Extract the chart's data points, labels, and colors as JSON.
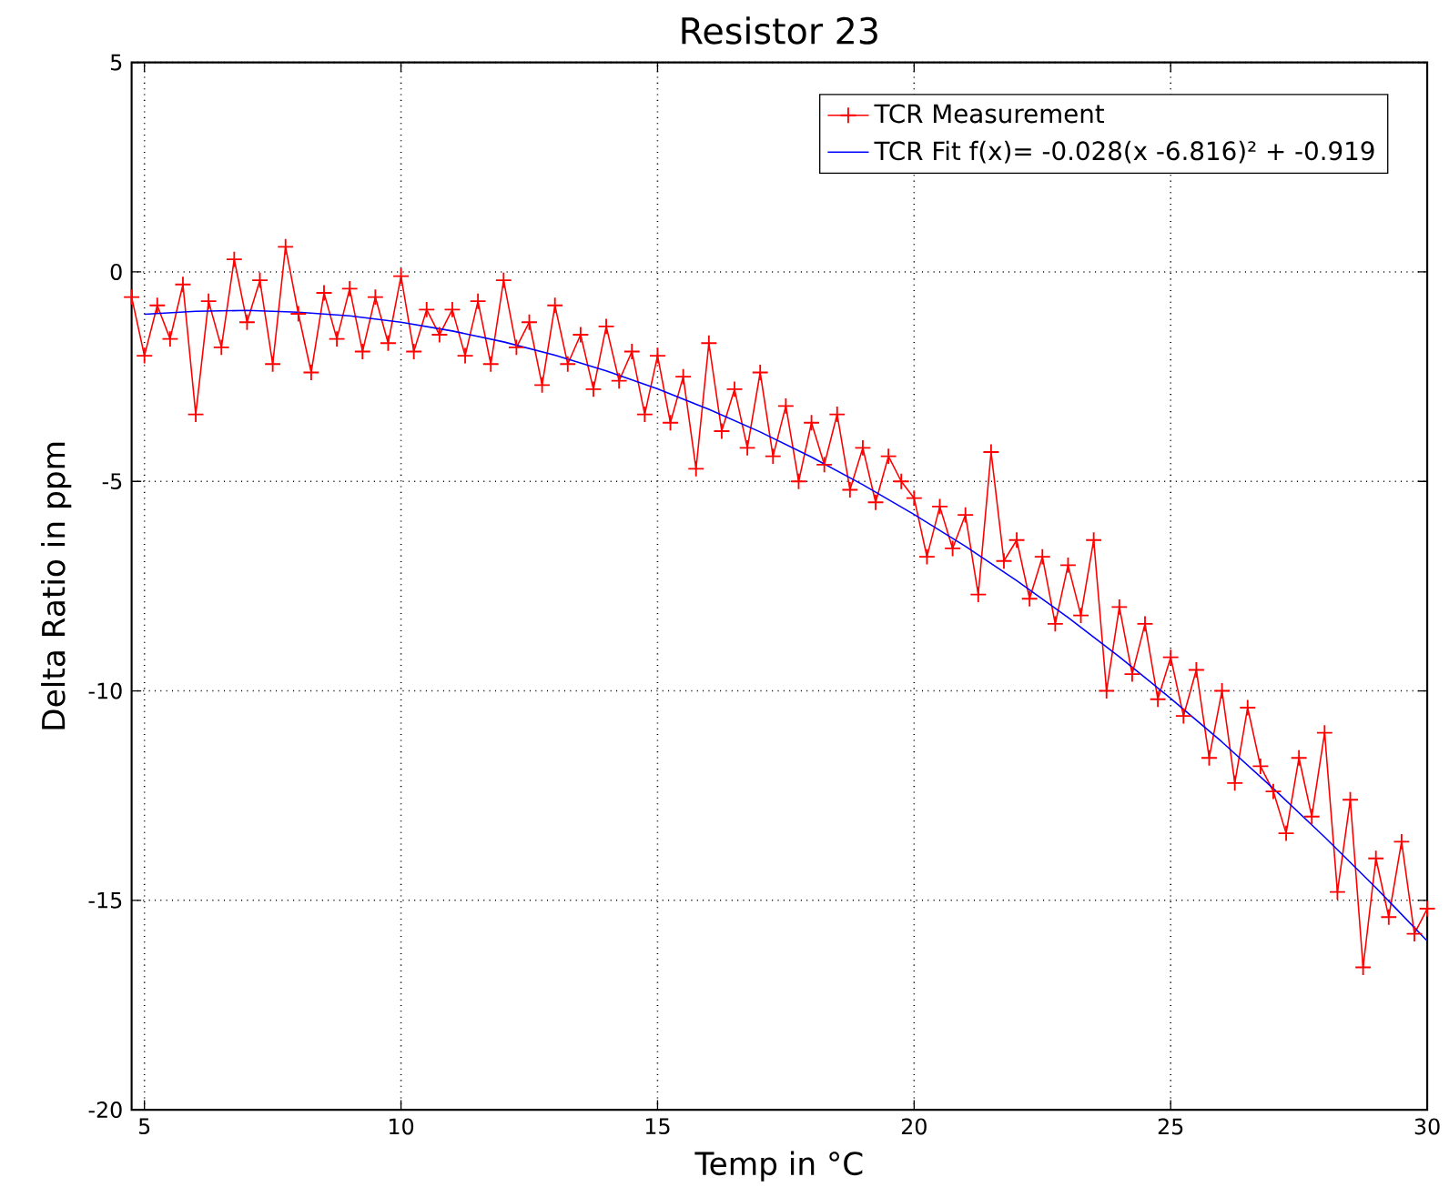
{
  "chart_data": {
    "type": "line",
    "title": "Resistor 23",
    "xlabel": "Temp in °C",
    "ylabel": "Delta Ratio in ppm",
    "xlim": [
      4.75,
      30
    ],
    "xticks": [
      5,
      10,
      15,
      20,
      25,
      30
    ],
    "ylim": [
      -20,
      5
    ],
    "yticks": [
      -20,
      -15,
      -10,
      -5,
      0,
      5
    ],
    "grid": true,
    "legend": "top right",
    "line_style": "solid",
    "series": [
      {
        "name": "TCR Measurement",
        "color": "#ff0000",
        "marker": "cross",
        "x": [
          4.75,
          5,
          5.25,
          5.5,
          5.75,
          6,
          6.25,
          6.5,
          6.75,
          7,
          7.25,
          7.5,
          7.75,
          8,
          8.25,
          8.5,
          8.75,
          9,
          9.25,
          9.5,
          9.75,
          10,
          10.25,
          10.5,
          10.75,
          11,
          11.25,
          11.5,
          11.75,
          12,
          12.25,
          12.5,
          12.75,
          13,
          13.25,
          13.5,
          13.75,
          14,
          14.25,
          14.5,
          14.75,
          15,
          15.25,
          15.5,
          15.75,
          16,
          16.25,
          16.5,
          16.75,
          17,
          17.25,
          17.5,
          17.75,
          18,
          18.25,
          18.5,
          18.75,
          19,
          19.25,
          19.5,
          19.75,
          20,
          20.25,
          20.5,
          20.75,
          21,
          21.25,
          21.5,
          21.75,
          22,
          22.25,
          22.5,
          22.75,
          23,
          23.25,
          23.5,
          23.75,
          24,
          24.25,
          24.5,
          24.75,
          25,
          25.25,
          25.5,
          25.75,
          26,
          26.25,
          26.5,
          26.75,
          27,
          27.25,
          27.5,
          27.75,
          28,
          28.25,
          28.5,
          28.75,
          29,
          29.25,
          29.5,
          29.75,
          30
        ],
        "values": [
          -0.6,
          -2.0,
          -0.8,
          -1.6,
          -0.3,
          -3.4,
          -0.7,
          -1.8,
          0.3,
          -1.2,
          -0.2,
          -2.2,
          0.6,
          -1.0,
          -2.4,
          -0.5,
          -1.6,
          -0.4,
          -1.9,
          -0.6,
          -1.7,
          -0.1,
          -1.9,
          -0.9,
          -1.5,
          -0.9,
          -2.0,
          -0.7,
          -2.2,
          -0.2,
          -1.8,
          -1.2,
          -2.7,
          -0.8,
          -2.2,
          -1.5,
          -2.8,
          -1.3,
          -2.6,
          -1.9,
          -3.4,
          -2.0,
          -3.6,
          -2.5,
          -4.7,
          -1.7,
          -3.8,
          -2.8,
          -4.2,
          -2.4,
          -4.4,
          -3.2,
          -5.0,
          -3.6,
          -4.6,
          -3.4,
          -5.2,
          -4.2,
          -5.5,
          -4.4,
          -5.0,
          -5.4,
          -6.8,
          -5.6,
          -6.6,
          -5.8,
          -7.7,
          -4.3,
          -6.9,
          -6.4,
          -7.8,
          -6.8,
          -8.4,
          -7.0,
          -8.2,
          -6.4,
          -10.0,
          -8.0,
          -9.6,
          -8.4,
          -10.2,
          -9.2,
          -10.6,
          -9.5,
          -11.6,
          -10.0,
          -12.2,
          -10.4,
          -11.8,
          -12.4,
          -13.4,
          -11.6,
          -13.0,
          -11.0,
          -14.8,
          -12.6,
          -16.6,
          -14.0,
          -15.4,
          -13.6,
          -15.8,
          -15.2
        ]
      },
      {
        "name": "TCR Fit f(x)= -0.028(x -6.816)² + -0.919",
        "color": "#0000ff",
        "marker": "none",
        "x": [
          5,
          6,
          7,
          8,
          9,
          10,
          11,
          12,
          13,
          14,
          15,
          16,
          17,
          18,
          19,
          20,
          21,
          22,
          23,
          24,
          25,
          26,
          27,
          28,
          29,
          30
        ],
        "values": [
          -1.01,
          -0.94,
          -0.92,
          -0.96,
          -1.05,
          -1.2,
          -1.41,
          -1.67,
          -1.99,
          -2.36,
          -2.79,
          -3.28,
          -3.82,
          -4.42,
          -5.08,
          -5.79,
          -6.55,
          -7.37,
          -8.25,
          -9.19,
          -10.18,
          -11.22,
          -12.33,
          -13.49,
          -14.7,
          -15.97
        ]
      }
    ]
  }
}
